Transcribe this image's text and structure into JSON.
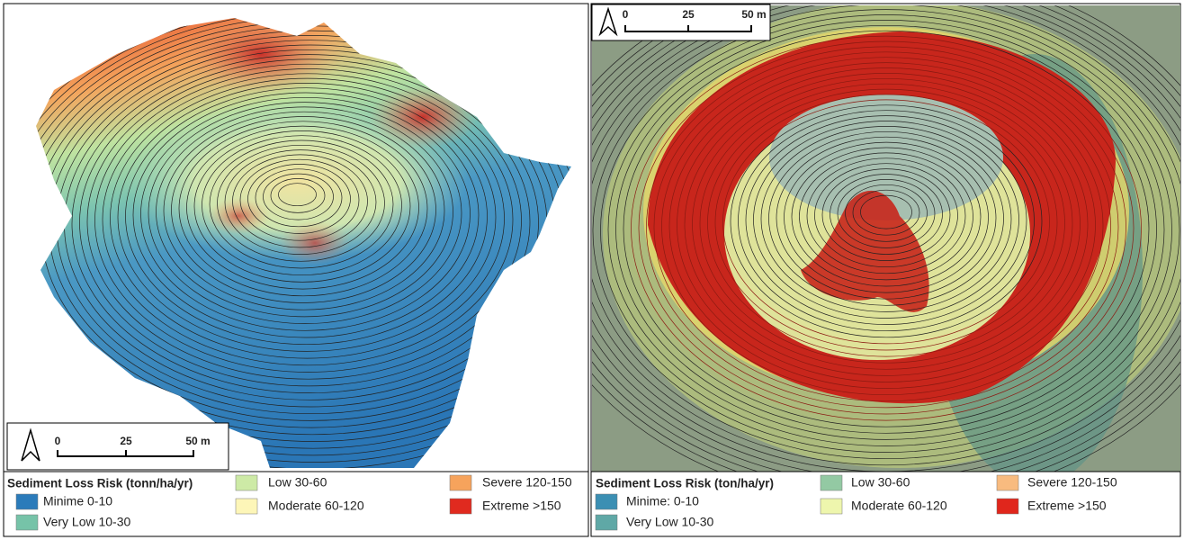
{
  "panels": [
    {
      "scale_bar": {
        "labels": [
          "0",
          "25",
          "50 m"
        ]
      },
      "legend": {
        "title": "Sediment Loss Risk (tonn/ha/yr)",
        "items": [
          {
            "label": "Minime 0-10",
            "color": "#2b7bba"
          },
          {
            "label": "Very Low 10-30",
            "color": "#76c3a8"
          },
          {
            "label": "Low 30-60",
            "color": "#cdeaa6"
          },
          {
            "label": "Moderate 60-120",
            "color": "#fdf6b8"
          },
          {
            "label": "Severe 120-150",
            "color": "#f6a35c"
          },
          {
            "label": "Extreme >150",
            "color": "#e02a1f"
          }
        ]
      }
    },
    {
      "scale_bar": {
        "labels": [
          "0",
          "25",
          "50 m"
        ]
      },
      "legend": {
        "title": "Sediment Loss Risk (ton/ha/yr)",
        "items": [
          {
            "label": "Minime: 0-10",
            "color": "#3b8fb3"
          },
          {
            "label": "Very Low 10-30",
            "color": "#5fa8a6"
          },
          {
            "label": "Low 30-60",
            "color": "#93c9a3"
          },
          {
            "label": "Moderate 60-120",
            "color": "#eef6ad"
          },
          {
            "label": "Severe 120-150",
            "color": "#f8bb7f"
          },
          {
            "label": "Extreme >150",
            "color": "#e0261c"
          }
        ]
      }
    }
  ]
}
